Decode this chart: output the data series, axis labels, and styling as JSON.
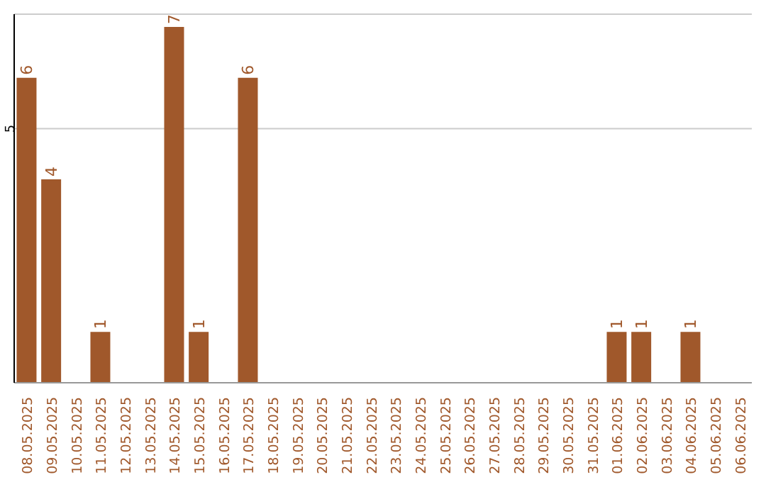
{
  "chart_data": {
    "type": "bar",
    "categories": [
      "08.05.2025",
      "09.05.2025",
      "10.05.2025",
      "11.05.2025",
      "12.05.2025",
      "13.05.2025",
      "14.05.2025",
      "15.05.2025",
      "16.05.2025",
      "17.05.2025",
      "18.05.2025",
      "19.05.2025",
      "20.05.2025",
      "21.05.2025",
      "22.05.2025",
      "23.05.2025",
      "24.05.2025",
      "25.05.2025",
      "26.05.2025",
      "27.05.2025",
      "28.05.2025",
      "29.05.2025",
      "30.05.2025",
      "31.05.2025",
      "01.06.2025",
      "02.06.2025",
      "03.06.2025",
      "04.06.2025",
      "05.06.2025",
      "06.06.2025"
    ],
    "values": [
      6,
      4,
      0,
      1,
      0,
      0,
      7,
      1,
      0,
      6,
      0,
      0,
      0,
      0,
      0,
      0,
      0,
      0,
      0,
      0,
      0,
      0,
      0,
      0,
      1,
      1,
      0,
      1,
      0,
      0
    ],
    "value_labels": [
      "6",
      "4",
      null,
      "1",
      null,
      null,
      "7",
      "1",
      null,
      "6",
      null,
      null,
      null,
      null,
      null,
      null,
      null,
      null,
      null,
      null,
      null,
      null,
      null,
      null,
      "1",
      "1",
      null,
      "1",
      null,
      null
    ],
    "color": "#a0582b",
    "ylim": [
      0,
      7.25
    ],
    "yticks": [
      5
    ],
    "grid": "y"
  }
}
